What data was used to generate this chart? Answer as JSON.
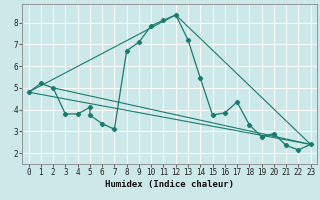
{
  "xlabel": "Humidex (Indice chaleur)",
  "bg_color": "#cce8e8",
  "grid_color": "#ffffff",
  "line_color": "#1a7a6e",
  "xlim": [
    -0.5,
    23.5
  ],
  "ylim": [
    1.5,
    8.85
  ],
  "xticks": [
    0,
    1,
    2,
    3,
    4,
    5,
    6,
    7,
    8,
    9,
    10,
    11,
    12,
    13,
    14,
    15,
    16,
    17,
    18,
    19,
    20,
    21,
    22,
    23
  ],
  "yticks": [
    2,
    3,
    4,
    5,
    6,
    7,
    8
  ],
  "series": [
    [
      0,
      4.8
    ],
    [
      1,
      5.2
    ],
    [
      2,
      5.0
    ],
    [
      3,
      3.8
    ],
    [
      4,
      3.8
    ],
    [
      5,
      4.1
    ],
    [
      5,
      3.75
    ],
    [
      6,
      3.35
    ],
    [
      7,
      3.1
    ],
    [
      8,
      6.7
    ],
    [
      9,
      7.1
    ],
    [
      10,
      7.85
    ],
    [
      11,
      8.1
    ],
    [
      12,
      8.35
    ],
    [
      13,
      7.2
    ],
    [
      14,
      5.45
    ],
    [
      15,
      3.75
    ],
    [
      16,
      3.85
    ],
    [
      17,
      4.35
    ],
    [
      18,
      3.3
    ],
    [
      19,
      2.75
    ],
    [
      20,
      2.9
    ],
    [
      21,
      2.35
    ],
    [
      22,
      2.15
    ],
    [
      23,
      2.4
    ]
  ],
  "line2": [
    [
      0,
      4.8
    ],
    [
      23,
      2.4
    ]
  ],
  "line3": [
    [
      2,
      5.0
    ],
    [
      23,
      2.4
    ]
  ],
  "line4": [
    [
      0,
      4.8
    ],
    [
      12,
      8.35
    ],
    [
      23,
      2.4
    ]
  ]
}
